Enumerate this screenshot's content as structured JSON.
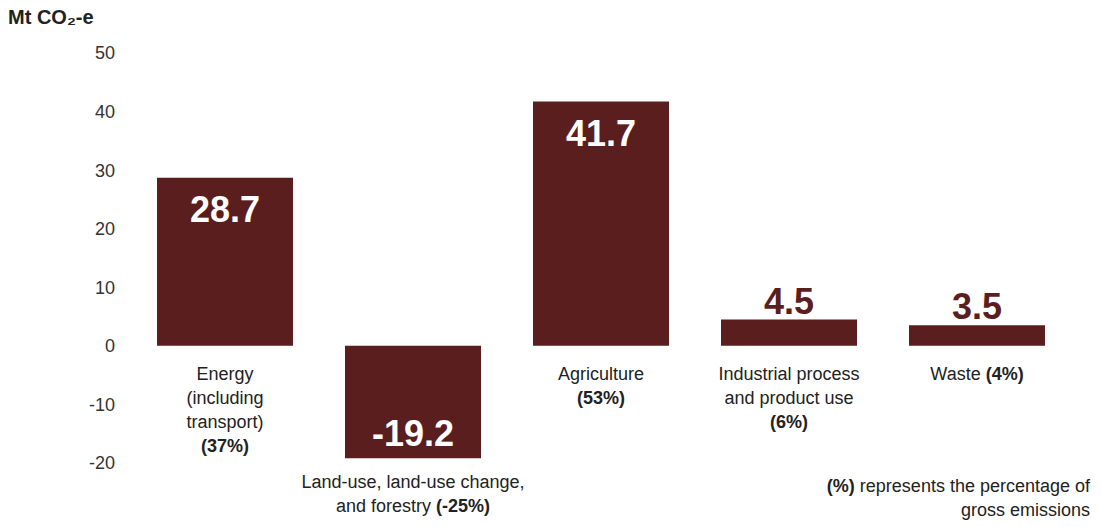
{
  "chart_data": {
    "type": "bar",
    "y_label": "Mt CO₂-e",
    "categories": [
      "Energy (including transport) (37%)",
      "Land-use, land-use change, and forestry (-25%)",
      "Agriculture (53%)",
      "Industrial process and product use (6%)",
      "Waste (4%)"
    ],
    "values": [
      28.7,
      -19.2,
      41.7,
      4.5,
      3.5
    ],
    "color": "#5a1e1e",
    "ylim": [
      -20,
      50
    ],
    "yticks": [
      -20,
      -10,
      0,
      10,
      20,
      30,
      40,
      50
    ],
    "grid": false,
    "data_labels": true,
    "note": "(%) represents the percentage of gross emissions"
  }
}
